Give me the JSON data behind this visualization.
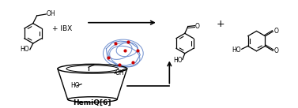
{
  "background_color": "#ffffff",
  "line_color": "#000000",
  "red_color": "#cc0000",
  "blue_color": "#6688cc",
  "ibx_text": "+ IBX",
  "plus_text": "+",
  "hemiq_text": "HemiQ[6]",
  "ho_text": "HO",
  "oh_text": "OH",
  "o_text": "O",
  "figsize": [
    3.77,
    1.37
  ],
  "dpi": 100,
  "lw": 0.9
}
